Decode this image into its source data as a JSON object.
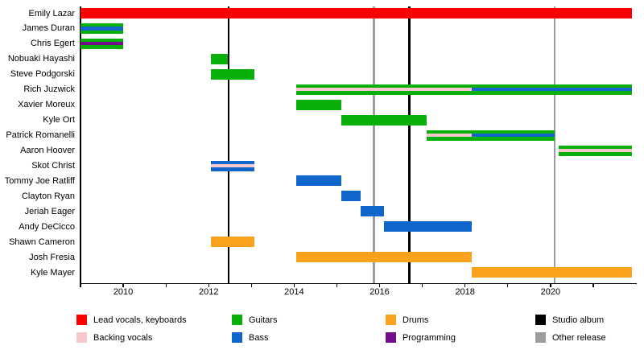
{
  "chart_data": {
    "type": "bar",
    "subtype": "band-member-gantt-timeline",
    "title": "",
    "x_axis": {
      "min": 2009,
      "max": 2022,
      "tick_years": [
        2009,
        2010,
        2011,
        2012,
        2013,
        2014,
        2015,
        2016,
        2017,
        2018,
        2019,
        2020,
        2021
      ],
      "label_years": [
        2010,
        2012,
        2014,
        2016,
        2018,
        2020
      ],
      "grid": false
    },
    "role_colors": {
      "lead_vocals_keyboards": "#fa0000",
      "backing_vocals": "#f6c7cd",
      "guitars": "#0ab00a",
      "bass": "#1166cc",
      "drums": "#faa21b",
      "programming": "#740d8c"
    },
    "event_colors": {
      "studio_album": "#000000",
      "other_release": "#9d9d9d"
    },
    "members": [
      {
        "name": "Emily Lazar",
        "segments": [
          {
            "from": 2009.0,
            "to": 2021.9,
            "role": "lead_vocals_keyboards"
          }
        ],
        "stripes": []
      },
      {
        "name": "James Duran",
        "segments": [
          {
            "from": 2009.0,
            "to": 2010.0,
            "role": "guitars"
          }
        ],
        "stripes": [
          {
            "from": 2009.0,
            "to": 2010.0,
            "role": "bass"
          }
        ]
      },
      {
        "name": "Chris Egert",
        "segments": [
          {
            "from": 2009.0,
            "to": 2010.0,
            "role": "guitars"
          }
        ],
        "stripes": [
          {
            "from": 2009.0,
            "to": 2010.0,
            "role": "programming"
          }
        ]
      },
      {
        "name": "Nobuaki Hayashi",
        "segments": [
          {
            "from": 2012.05,
            "to": 2012.45,
            "role": "guitars"
          }
        ],
        "stripes": []
      },
      {
        "name": "Steve Podgorski",
        "segments": [
          {
            "from": 2012.05,
            "to": 2013.07,
            "role": "guitars"
          }
        ],
        "stripes": []
      },
      {
        "name": "Rich Juzwick",
        "segments": [
          {
            "from": 2014.05,
            "to": 2021.9,
            "role": "guitars"
          }
        ],
        "stripes": [
          {
            "from": 2014.05,
            "to": 2018.15,
            "role": "backing_vocals"
          },
          {
            "from": 2018.15,
            "to": 2021.9,
            "role": "bass"
          }
        ]
      },
      {
        "name": "Xavier Moreux",
        "segments": [
          {
            "from": 2014.05,
            "to": 2015.1,
            "role": "guitars"
          }
        ],
        "stripes": []
      },
      {
        "name": "Kyle Ort",
        "segments": [
          {
            "from": 2015.1,
            "to": 2017.1,
            "role": "guitars"
          }
        ],
        "stripes": []
      },
      {
        "name": "Patrick Romanelli",
        "segments": [
          {
            "from": 2017.1,
            "to": 2020.1,
            "role": "guitars"
          }
        ],
        "stripes": [
          {
            "from": 2017.1,
            "to": 2018.15,
            "role": "backing_vocals"
          },
          {
            "from": 2018.15,
            "to": 2020.1,
            "role": "bass"
          }
        ]
      },
      {
        "name": "Aaron Hoover",
        "segments": [
          {
            "from": 2020.2,
            "to": 2021.9,
            "role": "guitars"
          }
        ],
        "stripes": [
          {
            "from": 2020.2,
            "to": 2021.9,
            "role": "backing_vocals"
          }
        ]
      },
      {
        "name": "Skot Christ",
        "segments": [
          {
            "from": 2012.05,
            "to": 2013.07,
            "role": "bass"
          }
        ],
        "stripes": [
          {
            "from": 2012.05,
            "to": 2013.07,
            "role": "backing_vocals"
          }
        ]
      },
      {
        "name": "Tommy Joe Ratliff",
        "segments": [
          {
            "from": 2014.05,
            "to": 2015.1,
            "role": "bass"
          }
        ],
        "stripes": []
      },
      {
        "name": "Clayton Ryan",
        "segments": [
          {
            "from": 2015.1,
            "to": 2015.55,
            "role": "bass"
          }
        ],
        "stripes": []
      },
      {
        "name": "Jeriah Eager",
        "segments": [
          {
            "from": 2015.55,
            "to": 2016.1,
            "role": "bass"
          }
        ],
        "stripes": []
      },
      {
        "name": "Andy DeCicco",
        "segments": [
          {
            "from": 2016.1,
            "to": 2018.15,
            "role": "bass"
          }
        ],
        "stripes": []
      },
      {
        "name": "Shawn Cameron",
        "segments": [
          {
            "from": 2012.05,
            "to": 2013.07,
            "role": "drums"
          }
        ],
        "stripes": []
      },
      {
        "name": "Josh Fresia",
        "segments": [
          {
            "from": 2014.05,
            "to": 2018.15,
            "role": "drums"
          }
        ],
        "stripes": []
      },
      {
        "name": "Kyle Mayer",
        "segments": [
          {
            "from": 2018.15,
            "to": 2021.9,
            "role": "drums"
          }
        ],
        "stripes": []
      }
    ],
    "events": [
      {
        "year": 2012.47,
        "type": "studio_album"
      },
      {
        "year": 2015.87,
        "type": "other_release"
      },
      {
        "year": 2016.7,
        "type": "studio_album"
      },
      {
        "year": 2020.1,
        "type": "other_release"
      }
    ],
    "legend": [
      {
        "label": "Lead vocals, keyboards",
        "color": "#fa0000"
      },
      {
        "label": "Backing vocals",
        "color": "#f6c7cd"
      },
      {
        "label": "Guitars",
        "color": "#0ab00a"
      },
      {
        "label": "Bass",
        "color": "#1166cc"
      },
      {
        "label": "Drums",
        "color": "#faa21b"
      },
      {
        "label": "Programming",
        "color": "#740d8c"
      },
      {
        "label": "Studio album",
        "color": "#000000"
      },
      {
        "label": "Other release",
        "color": "#9d9d9d"
      }
    ],
    "legend_position": "bottom"
  }
}
